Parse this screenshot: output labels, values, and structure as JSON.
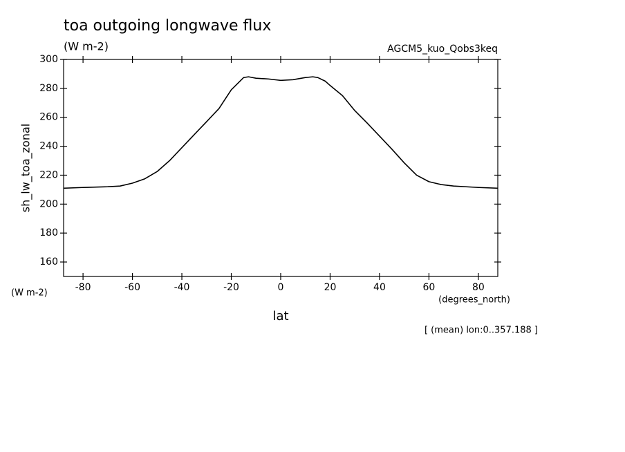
{
  "chart_data": {
    "type": "line",
    "title": "toa outgoing longwave flux",
    "subtitle": "(W m-2)",
    "dataset": "AGCM5_kuo_Qobs3keq",
    "ylabel": "sh_lw_toa_zonal",
    "yunits": "(W m-2)",
    "xlabel": "lat",
    "xunits": "(degrees_north)",
    "note": "[ (mean) lon:0..357.188 ]",
    "x": [
      -87.86,
      -80,
      -70,
      -65,
      -60,
      -55,
      -50,
      -45,
      -40,
      -35,
      -30,
      -25,
      -20,
      -15,
      -13,
      -10,
      -5,
      0,
      5,
      10,
      13,
      15,
      18,
      20,
      25,
      30,
      35,
      40,
      45,
      50,
      55,
      60,
      65,
      70,
      80,
      87.86
    ],
    "series": [
      {
        "color": "#000000",
        "values": [
          211,
          211.5,
          212,
          212.5,
          214.5,
          217.5,
          222.5,
          230,
          239,
          248,
          257,
          266,
          279,
          287.5,
          288,
          287,
          286.5,
          285.5,
          286,
          287.5,
          288,
          287.5,
          285,
          282,
          275,
          264.6,
          256,
          247,
          238,
          228.5,
          220,
          215.5,
          213.5,
          212.5,
          211.5,
          211
        ]
      }
    ],
    "xlim": [
      -87.86,
      87.86
    ],
    "xticks": [
      -80,
      -60,
      -40,
      -20,
      0,
      20,
      40,
      60,
      80
    ],
    "ylim": [
      150,
      300
    ],
    "yticks": [
      160,
      180,
      200,
      220,
      240,
      260,
      280,
      300
    ]
  }
}
